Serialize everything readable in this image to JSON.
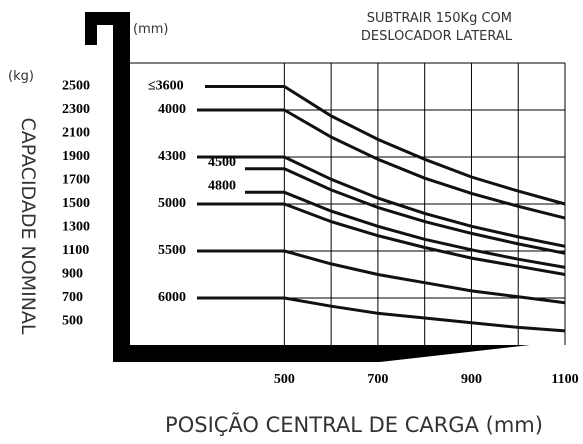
{
  "chart_data": {
    "type": "line",
    "title": [
      "SUBTRAIR 150Kg COM",
      "DESLOCADOR LATERAL"
    ],
    "x_unit": "(mm)",
    "y_unit": "(kg)",
    "y_label": "CAPACIDADE NOMINAL",
    "x_label": "POSIÇÃO CENTRAL DE CARGA (mm)",
    "x": [
      500,
      600,
      700,
      800,
      900,
      1000,
      1100
    ],
    "series": [
      {
        "name": "≤3600",
        "color": "#111",
        "values": [
          2500,
          2250,
          2050,
          1880,
          1730,
          1610,
          1500
        ]
      },
      {
        "name": "4000",
        "color": "#111",
        "values": [
          2300,
          2070,
          1880,
          1720,
          1590,
          1480,
          1380
        ]
      },
      {
        "name": "4300",
        "color": "#111",
        "values": [
          1900,
          1710,
          1550,
          1420,
          1310,
          1220,
          1140
        ]
      },
      {
        "name": "4500",
        "color": "#111",
        "values": [
          1800,
          1620,
          1470,
          1350,
          1250,
          1160,
          1080
        ]
      },
      {
        "name": "4800",
        "color": "#111",
        "values": [
          1600,
          1440,
          1310,
          1200,
          1110,
          1030,
          960
        ]
      },
      {
        "name": "5000",
        "color": "#111",
        "values": [
          1500,
          1350,
          1230,
          1130,
          1040,
          970,
          900
        ]
      },
      {
        "name": "5500",
        "color": "#111",
        "values": [
          1100,
          990,
          900,
          830,
          760,
          710,
          660
        ]
      },
      {
        "name": "6000",
        "color": "#111",
        "values": [
          700,
          630,
          570,
          530,
          490,
          450,
          420
        ]
      }
    ],
    "xlim": [
      170,
      1100
    ],
    "ylim": [
      300,
      2700
    ],
    "xticks": [
      500,
      700,
      900,
      1100
    ],
    "yticks": [
      500,
      700,
      900,
      1100,
      1300,
      1500,
      1700,
      1900,
      2100,
      2300,
      2500
    ],
    "grid": true
  }
}
